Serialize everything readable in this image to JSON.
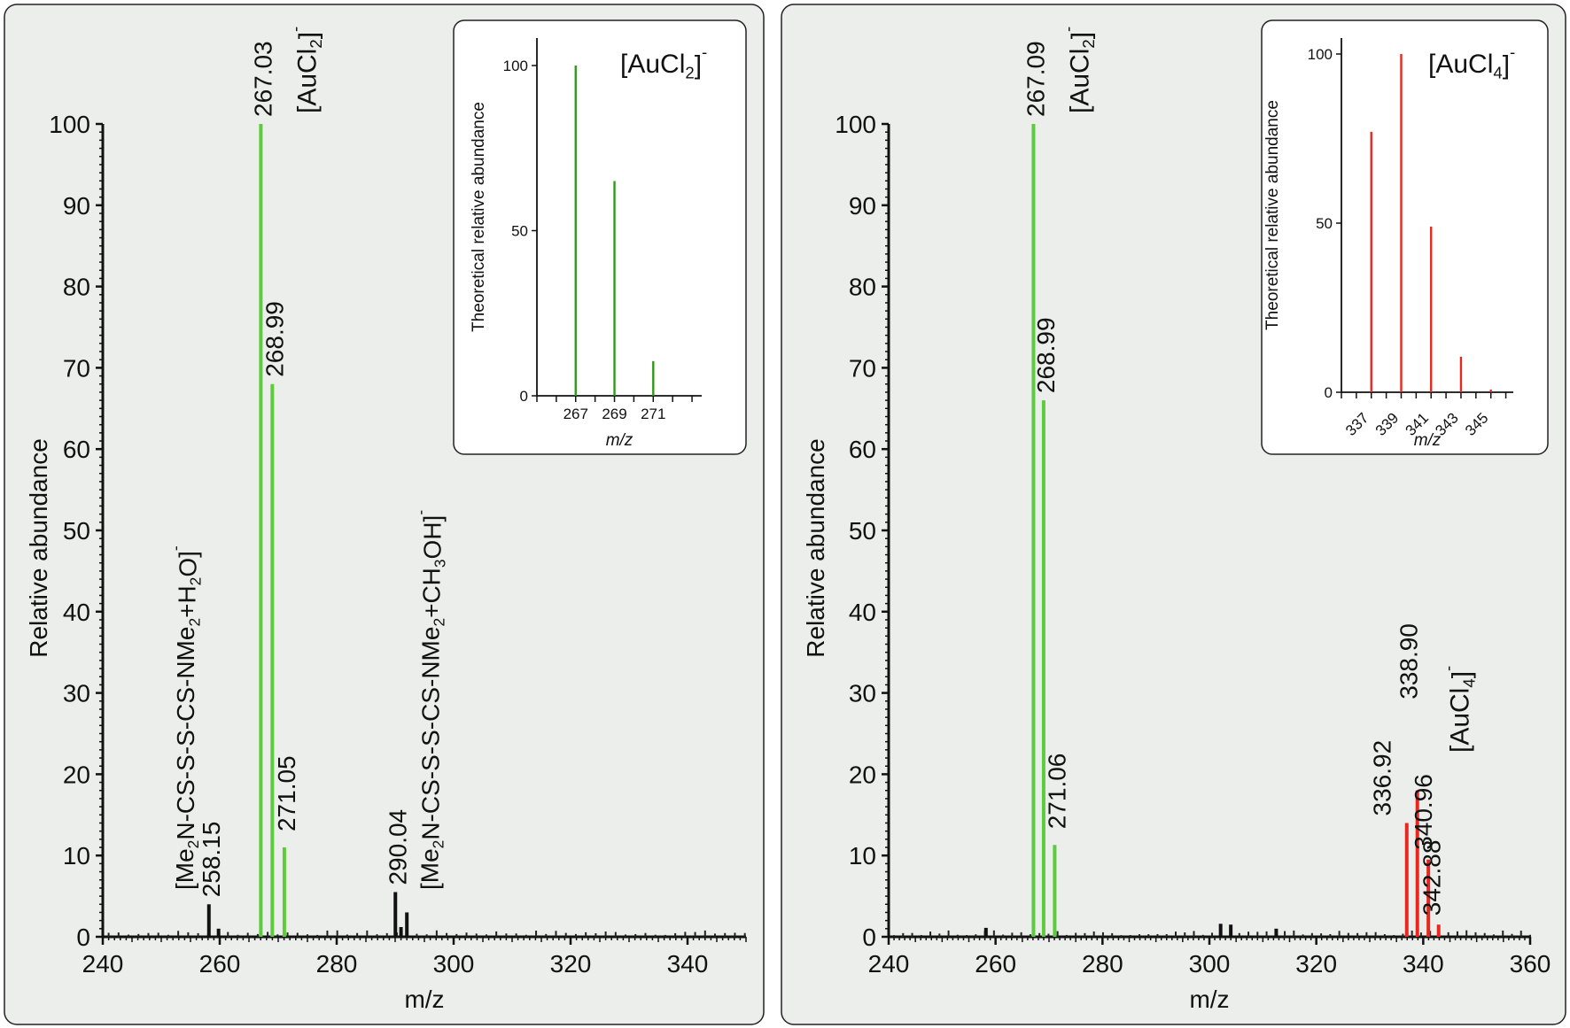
{
  "colors": {
    "panel_bg": "#eceeec",
    "inset_bg": "#ffffff",
    "black": "#111111",
    "green": "#5ccc3c",
    "green_dark": "#2f9a1c",
    "red": "#e8281e"
  },
  "chart_data": [
    {
      "type": "bar",
      "subtype": "mass-spectrum",
      "xlabel": "m/z",
      "ylabel": "Relative abundance",
      "xlim": [
        240,
        350
      ],
      "ylim": [
        0,
        100
      ],
      "xticks": [
        240,
        260,
        280,
        300,
        320,
        340
      ],
      "yticks": [
        0,
        10,
        20,
        30,
        40,
        50,
        60,
        70,
        80,
        90,
        100
      ],
      "peaks": [
        {
          "x": 267.03,
          "y": 100,
          "color": "green",
          "label": "267.03"
        },
        {
          "x": 268.99,
          "y": 68,
          "color": "green",
          "label": "268.99"
        },
        {
          "x": 271.05,
          "y": 11,
          "color": "green",
          "label": "271.05"
        },
        {
          "x": 258.15,
          "y": 4,
          "color": "black",
          "label": "258.15"
        },
        {
          "x": 290.04,
          "y": 5.5,
          "color": "black",
          "label": "290.04"
        },
        {
          "x": 291.0,
          "y": 1.2,
          "color": "black"
        },
        {
          "x": 292.0,
          "y": 3,
          "color": "black"
        },
        {
          "x": 259.8,
          "y": 1,
          "color": "black"
        }
      ],
      "annotations": [
        {
          "text": "[AuCl2]-",
          "base": "[AuCl",
          "sub": "2",
          "tail": "]",
          "sup": "-",
          "color": "green"
        },
        {
          "text": "[Me2N-CS-S-S-CS-NMe2+H2O]-",
          "color": "black"
        },
        {
          "text": "[Me2N-CS-S-S-CS-NMe2+CH3OH]-",
          "color": "black"
        }
      ],
      "inset": {
        "ylabel": "Theoretical relative abundance",
        "xlabel": "m/z",
        "title": "[AuCl2]-",
        "ylim": [
          0,
          100
        ],
        "yticks": [
          0,
          50,
          100
        ],
        "xticks": [
          267,
          269,
          271
        ],
        "peaks": [
          {
            "x": 267,
            "y": 100
          },
          {
            "x": 269,
            "y": 65
          },
          {
            "x": 271,
            "y": 10.5
          }
        ],
        "color": "green_dark"
      }
    },
    {
      "type": "bar",
      "subtype": "mass-spectrum",
      "xlabel": "m/z",
      "ylabel": "Relative abundance",
      "xlim": [
        240,
        360
      ],
      "ylim": [
        0,
        100
      ],
      "xticks": [
        240,
        260,
        280,
        300,
        320,
        340,
        360
      ],
      "yticks": [
        0,
        10,
        20,
        30,
        40,
        50,
        60,
        70,
        80,
        90,
        100
      ],
      "peaks": [
        {
          "x": 267.09,
          "y": 100,
          "color": "green",
          "label": "267.09"
        },
        {
          "x": 268.99,
          "y": 66,
          "color": "green",
          "label": "268.99"
        },
        {
          "x": 271.06,
          "y": 11.3,
          "color": "green",
          "label": "271.06"
        },
        {
          "x": 336.92,
          "y": 14,
          "color": "red",
          "label": "336.92"
        },
        {
          "x": 338.9,
          "y": 18,
          "color": "red",
          "label": "338.90"
        },
        {
          "x": 340.96,
          "y": 9.5,
          "color": "red",
          "label": "340.96"
        },
        {
          "x": 342.88,
          "y": 1.5,
          "color": "red",
          "label": "342.88"
        },
        {
          "x": 302.1,
          "y": 1.6,
          "color": "black"
        },
        {
          "x": 304.0,
          "y": 1.5,
          "color": "black"
        },
        {
          "x": 258.2,
          "y": 1.1,
          "color": "black"
        },
        {
          "x": 312.5,
          "y": 1,
          "color": "black"
        }
      ],
      "annotations": [
        {
          "text": "[AuCl2]-",
          "color": "green"
        },
        {
          "text": "[AuCl4]-",
          "color": "red"
        }
      ],
      "inset": {
        "ylabel": "Theoretical relative abundance",
        "xlabel": "m/z",
        "title": "[AuCl4]-",
        "ylim": [
          0,
          100
        ],
        "yticks": [
          0,
          50,
          100
        ],
        "xticks": [
          337,
          339,
          341,
          343,
          345
        ],
        "peaks": [
          {
            "x": 337,
            "y": 77
          },
          {
            "x": 339,
            "y": 100
          },
          {
            "x": 341,
            "y": 49
          },
          {
            "x": 343,
            "y": 10.5
          },
          {
            "x": 345,
            "y": 0.8
          }
        ],
        "color": "red"
      }
    }
  ]
}
